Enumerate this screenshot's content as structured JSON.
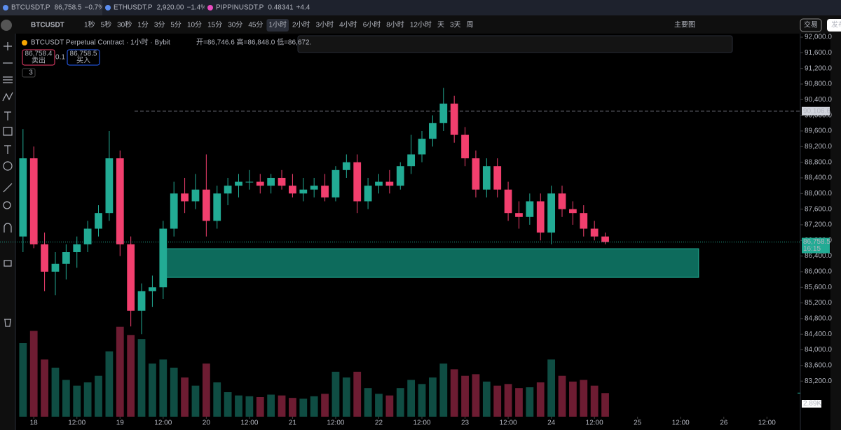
{
  "tabs": [
    {
      "symbol": "BTCUSDT.P",
      "price": "86,758.5",
      "change": "−0.7%"
    },
    {
      "symbol": "ETHUSDT.P",
      "price": "2,920.00",
      "change": "−1.4%"
    },
    {
      "symbol": "PIPPINUSDT.P",
      "price": "0.48341",
      "change": "+4.4"
    }
  ],
  "toolbar": {
    "symbol": "BTCUSDT",
    "timeframes": [
      "1秒",
      "5秒",
      "30秒",
      "1分",
      "3分",
      "5分",
      "10分",
      "15分",
      "30分",
      "45分",
      "1小时",
      "2小时",
      "3小时",
      "4小时",
      "6小时",
      "8小时",
      "12小时",
      "天",
      "3天",
      "周"
    ],
    "layout": "主要图",
    "trade": "交易",
    "publish": "发布"
  },
  "legend": {
    "title": "BTCUSDT Perpetual Contract · 1小时 · Bybit",
    "ohlc": "开=86,746.6 高=86,848.0 低=86,672.",
    "sell_price": "86,758.4",
    "sell": "卖出",
    "qty": "0.1",
    "buy_price": "86,758.5",
    "buy": "买入",
    "indicators": "3"
  },
  "chart_data": {
    "type": "candlestick",
    "x": [
      -3,
      0,
      3,
      6,
      9,
      12,
      15,
      18,
      21,
      24,
      27,
      30,
      33,
      36,
      39,
      42,
      45,
      48,
      51,
      54,
      57,
      60,
      63,
      66,
      69,
      72,
      75,
      78,
      81,
      84,
      87,
      90,
      93,
      96,
      99,
      102,
      105,
      108,
      111,
      114,
      117,
      120,
      123,
      126,
      129,
      132,
      135,
      138,
      141,
      144,
      147,
      150,
      153,
      156,
      159
    ],
    "open": [
      86900,
      88900,
      86700,
      86000,
      86200,
      86500,
      86700,
      87100,
      87500,
      88900,
      86700,
      85000,
      85500,
      85600,
      87100,
      88000,
      87800,
      88100,
      87300,
      88000,
      88200,
      88300,
      88300,
      88200,
      88400,
      88200,
      88000,
      88100,
      88200,
      87900,
      88600,
      88800,
      87800,
      88200,
      88300,
      88200,
      88700,
      89000,
      89400,
      89800,
      90300,
      89500,
      88900,
      88100,
      88700,
      88100,
      87500,
      87400,
      87800,
      87000,
      88000,
      87600,
      87500,
      87100,
      86900
    ],
    "high": [
      89650,
      89200,
      87000,
      86500,
      86700,
      86900,
      87300,
      87700,
      89600,
      89100,
      86900,
      85700,
      85900,
      87300,
      88300,
      88400,
      88500,
      89000,
      88200,
      88400,
      88500,
      88600,
      88500,
      88500,
      88600,
      88500,
      88400,
      88400,
      88500,
      88700,
      89000,
      89000,
      88400,
      88500,
      88600,
      88800,
      89500,
      89600,
      90000,
      90700,
      90500,
      89700,
      89100,
      88900,
      88900,
      88300,
      87800,
      88000,
      88000,
      88200,
      88200,
      87800,
      87700,
      87300,
      87000
    ],
    "low": [
      86500,
      86600,
      85500,
      85400,
      85800,
      86100,
      86500,
      86900,
      87300,
      86400,
      84600,
      84400,
      85100,
      85300,
      86900,
      87500,
      87600,
      86900,
      87100,
      87700,
      87900,
      88100,
      88000,
      88000,
      88100,
      87900,
      87800,
      87900,
      87800,
      87800,
      88400,
      87500,
      87600,
      88000,
      88000,
      88100,
      88500,
      88800,
      89200,
      89600,
      89300,
      88700,
      87900,
      87900,
      87900,
      87300,
      87100,
      87200,
      86800,
      86700,
      87400,
      87200,
      86900,
      86800,
      86700
    ],
    "close": [
      88900,
      86700,
      86000,
      86200,
      86500,
      86700,
      87100,
      87500,
      88900,
      86700,
      85000,
      85500,
      85600,
      87100,
      88000,
      87800,
      88100,
      87300,
      88000,
      88200,
      88300,
      88300,
      88200,
      88400,
      88200,
      88000,
      88100,
      88200,
      87900,
      88600,
      88800,
      87800,
      88200,
      88300,
      88200,
      88700,
      89000,
      89400,
      89800,
      90300,
      89500,
      88900,
      88100,
      88700,
      88100,
      87500,
      87400,
      87800,
      87000,
      88000,
      87600,
      87500,
      87100,
      86900,
      86758.5
    ],
    "volume": [
      9000,
      10500,
      7000,
      6000,
      4500,
      3800,
      4200,
      5000,
      8000,
      11000,
      10000,
      9500,
      6500,
      7000,
      6000,
      4800,
      3800,
      6500,
      4200,
      3000,
      2600,
      2500,
      2400,
      2700,
      2600,
      2300,
      2200,
      2500,
      2800,
      5500,
      4800,
      5500,
      3500,
      2800,
      2600,
      3500,
      4500,
      4000,
      4800,
      6500,
      5800,
      5000,
      5200,
      4300,
      3800,
      4000,
      3500,
      3600,
      4200,
      7000,
      5000,
      4300,
      4500,
      3800,
      2890
    ],
    "volume_label": "2.89K",
    "vlim": [
      0,
      12000
    ],
    "up_color": "#22ab94",
    "down_color": "#f23f6e",
    "xlim": [
      -9.4,
      213.3
    ],
    "xticks": [
      {
        "value": 0,
        "label": "18"
      },
      {
        "value": 12,
        "label": "12:00"
      },
      {
        "value": 24,
        "label": "19"
      },
      {
        "value": 36,
        "label": "12:00"
      },
      {
        "value": 48,
        "label": "20"
      },
      {
        "value": 60,
        "label": "12:00"
      },
      {
        "value": 72,
        "label": "21"
      },
      {
        "value": 84,
        "label": "12:00"
      },
      {
        "value": 96,
        "label": "22"
      },
      {
        "value": 108,
        "label": "12:00"
      },
      {
        "value": 120,
        "label": "23"
      },
      {
        "value": 132,
        "label": "12:00"
      },
      {
        "value": 144,
        "label": "24"
      },
      {
        "value": 156,
        "label": "12:00"
      },
      {
        "value": 168,
        "label": "25"
      },
      {
        "value": 180,
        "label": "12:00"
      },
      {
        "value": 192,
        "label": "26"
      },
      {
        "value": 204,
        "label": "12:00"
      }
    ],
    "ylim": [
      82290,
      92090
    ],
    "yticks": [
      {
        "value": 83200,
        "label": "83,200.0"
      },
      {
        "value": 83600,
        "label": "83,600.0"
      },
      {
        "value": 84000,
        "label": "84,000.0"
      },
      {
        "value": 84400,
        "label": "84,400.0"
      },
      {
        "value": 84800,
        "label": "84,800.0"
      },
      {
        "value": 85200,
        "label": "85,200.0"
      },
      {
        "value": 85600,
        "label": "85,600.0"
      },
      {
        "value": 86000,
        "label": "86,000.0"
      },
      {
        "value": 86400,
        "label": "86,400.0"
      },
      {
        "value": 86800,
        "label": "86,800.0"
      },
      {
        "value": 87200,
        "label": "87,200.0"
      },
      {
        "value": 87600,
        "label": "87,600.0"
      },
      {
        "value": 88000,
        "label": "88,000.0"
      },
      {
        "value": 88400,
        "label": "88,400.0"
      },
      {
        "value": 88800,
        "label": "88,800.0"
      },
      {
        "value": 89200,
        "label": "89,200.0"
      },
      {
        "value": 89600,
        "label": "89,600.0"
      },
      {
        "value": 90000,
        "label": "90,000.0"
      },
      {
        "value": 90400,
        "label": "90,400.0"
      },
      {
        "value": 90800,
        "label": "90,800.0"
      },
      {
        "value": 91200,
        "label": "91,200.0"
      },
      {
        "value": 91600,
        "label": "91,600.0"
      },
      {
        "value": 92000,
        "label": "92,000.0"
      }
    ],
    "zone": {
      "top": 86588,
      "bottom": 85853,
      "from": 35.5,
      "to": 185,
      "color": "#0d6b5c"
    },
    "level": {
      "value": 90106.6,
      "label": "90,106.6"
    },
    "last": {
      "value": 86758.5,
      "label": "86,758.5",
      "countdown": "16:15"
    }
  }
}
